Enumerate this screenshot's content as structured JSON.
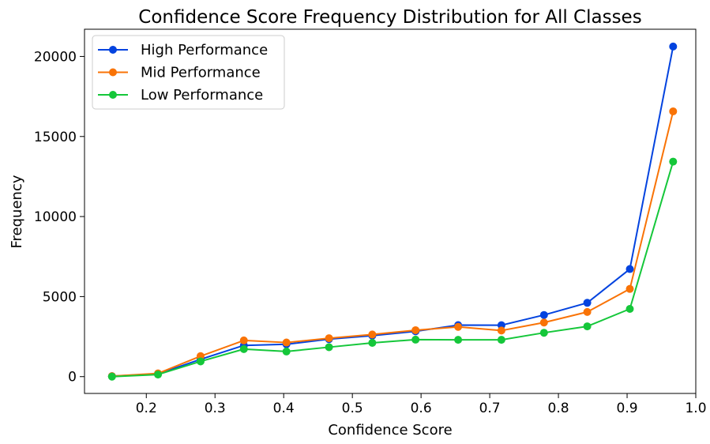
{
  "chart_data": {
    "type": "line",
    "title": "Confidence Score Frequency Distribution for All Classes",
    "xlabel": "Confidence Score",
    "ylabel": "Frequency",
    "xlim": [
      0.11,
      1.0
    ],
    "ylim": [
      -1050,
      21700
    ],
    "xticks": [
      0.2,
      0.3,
      0.4,
      0.5,
      0.6,
      0.7,
      0.8,
      0.9,
      1.0
    ],
    "xtick_labels": [
      "0.2",
      "0.3",
      "0.4",
      "0.5",
      "0.6",
      "0.7",
      "0.8",
      "0.9",
      "1.0"
    ],
    "yticks": [
      0,
      5000,
      10000,
      15000,
      20000
    ],
    "ytick_labels": [
      "0",
      "5000",
      "10000",
      "15000",
      "20000"
    ],
    "grid": false,
    "legend_position": "top-left",
    "x": [
      0.15,
      0.217,
      0.279,
      0.342,
      0.404,
      0.466,
      0.529,
      0.592,
      0.654,
      0.717,
      0.779,
      0.842,
      0.904,
      0.967
    ],
    "series": [
      {
        "name": "High Performance",
        "color": "#0343df",
        "values": [
          30,
          170,
          1080,
          1950,
          2020,
          2340,
          2560,
          2830,
          3220,
          3210,
          3850,
          4610,
          6720,
          20620
        ]
      },
      {
        "name": "Mid Performance",
        "color": "#f97306",
        "values": [
          30,
          200,
          1280,
          2260,
          2130,
          2400,
          2630,
          2900,
          3110,
          2880,
          3380,
          4040,
          5480,
          16570
        ]
      },
      {
        "name": "Low Performance",
        "color": "#15c73a",
        "values": [
          0,
          130,
          950,
          1720,
          1570,
          1840,
          2110,
          2310,
          2300,
          2300,
          2740,
          3140,
          4230,
          13430
        ]
      }
    ]
  }
}
